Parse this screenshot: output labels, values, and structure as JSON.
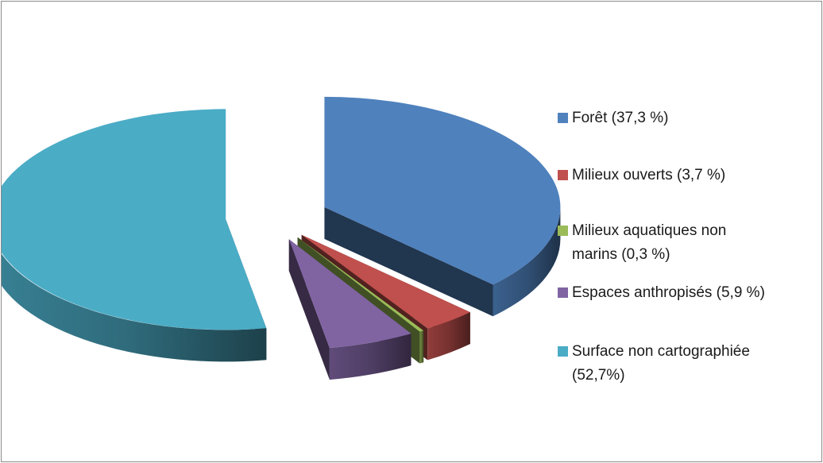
{
  "chart_data": {
    "type": "pie",
    "title": "",
    "three_d": true,
    "exploded": true,
    "legend_position": "right",
    "series": [
      {
        "values": [
          37.3,
          3.7,
          0.3,
          5.9,
          52.7
        ],
        "labels": [
          "Forêt (37,3 %)",
          "Milieux ouverts (3,7 %)",
          "Milieux aquatiques non marins (0,3 %)",
          "Espaces anthropisés (5,9 %)",
          "Surface non cartographiée (52,7%)"
        ],
        "colors": [
          "#4f81bd",
          "#c0504d",
          "#9bbb59",
          "#8064a2",
          "#4bacc6"
        ]
      }
    ]
  }
}
